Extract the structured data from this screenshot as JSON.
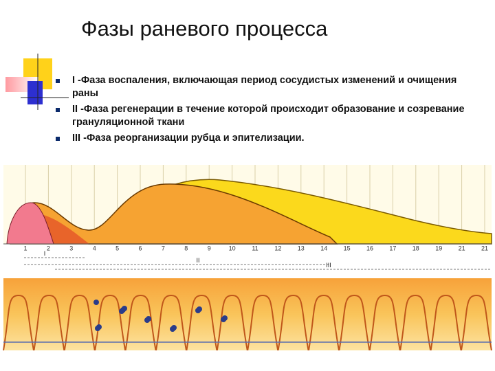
{
  "header": {
    "title": "Фазы раневого процесса"
  },
  "bullets": [
    "I -Фаза воспаления, включающая период сосудистых изменений и очищения раны",
    "II -Фаза регенерации в течение которой происходит образование и созревание грануляционной ткани",
    "III -Фаза реорганизации рубца и эпителизации."
  ],
  "figure": {
    "day_labels": [
      "1",
      "2",
      "3",
      "4",
      "5",
      "6",
      "7",
      "8",
      "9",
      "10",
      "11",
      "12",
      "13",
      "14",
      "15",
      "16",
      "17",
      "18",
      "19",
      "21",
      "21"
    ],
    "phase_labels": [
      "I",
      "II",
      "III"
    ]
  }
}
